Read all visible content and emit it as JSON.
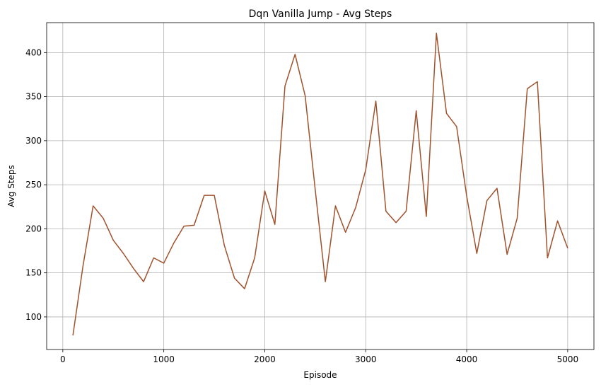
{
  "chart_data": {
    "type": "line",
    "title": "Dqn Vanilla Jump - Avg Steps",
    "xlabel": "Episode",
    "ylabel": "Avg Steps",
    "xlim": [
      -160,
      5260
    ],
    "ylim": [
      63,
      434
    ],
    "xticks": [
      0,
      1000,
      2000,
      3000,
      4000,
      5000
    ],
    "yticks": [
      100,
      150,
      200,
      250,
      300,
      350,
      400
    ],
    "grid": true,
    "series": [
      {
        "color": "#a0522d",
        "x": [
          100,
          200,
          300,
          400,
          500,
          600,
          700,
          800,
          900,
          1000,
          1100,
          1200,
          1300,
          1400,
          1500,
          1600,
          1700,
          1800,
          1900,
          2000,
          2100,
          2200,
          2300,
          2400,
          2500,
          2600,
          2700,
          2800,
          2900,
          3000,
          3100,
          3200,
          3300,
          3400,
          3500,
          3600,
          3700,
          3800,
          3900,
          4000,
          4100,
          4200,
          4300,
          4400,
          4500,
          4600,
          4700,
          4800,
          4900,
          5000
        ],
        "y": [
          79,
          158,
          226,
          212,
          187,
          172,
          155,
          140,
          167,
          161,
          184,
          203,
          204,
          238,
          238,
          181,
          144,
          132,
          167,
          243,
          205,
          362,
          398,
          351,
          244,
          140,
          226,
          196,
          224,
          267,
          345,
          220,
          207,
          220,
          334,
          214,
          422,
          331,
          316,
          237,
          172,
          232,
          246,
          171,
          212,
          359,
          367,
          167,
          209,
          178
        ]
      }
    ]
  }
}
